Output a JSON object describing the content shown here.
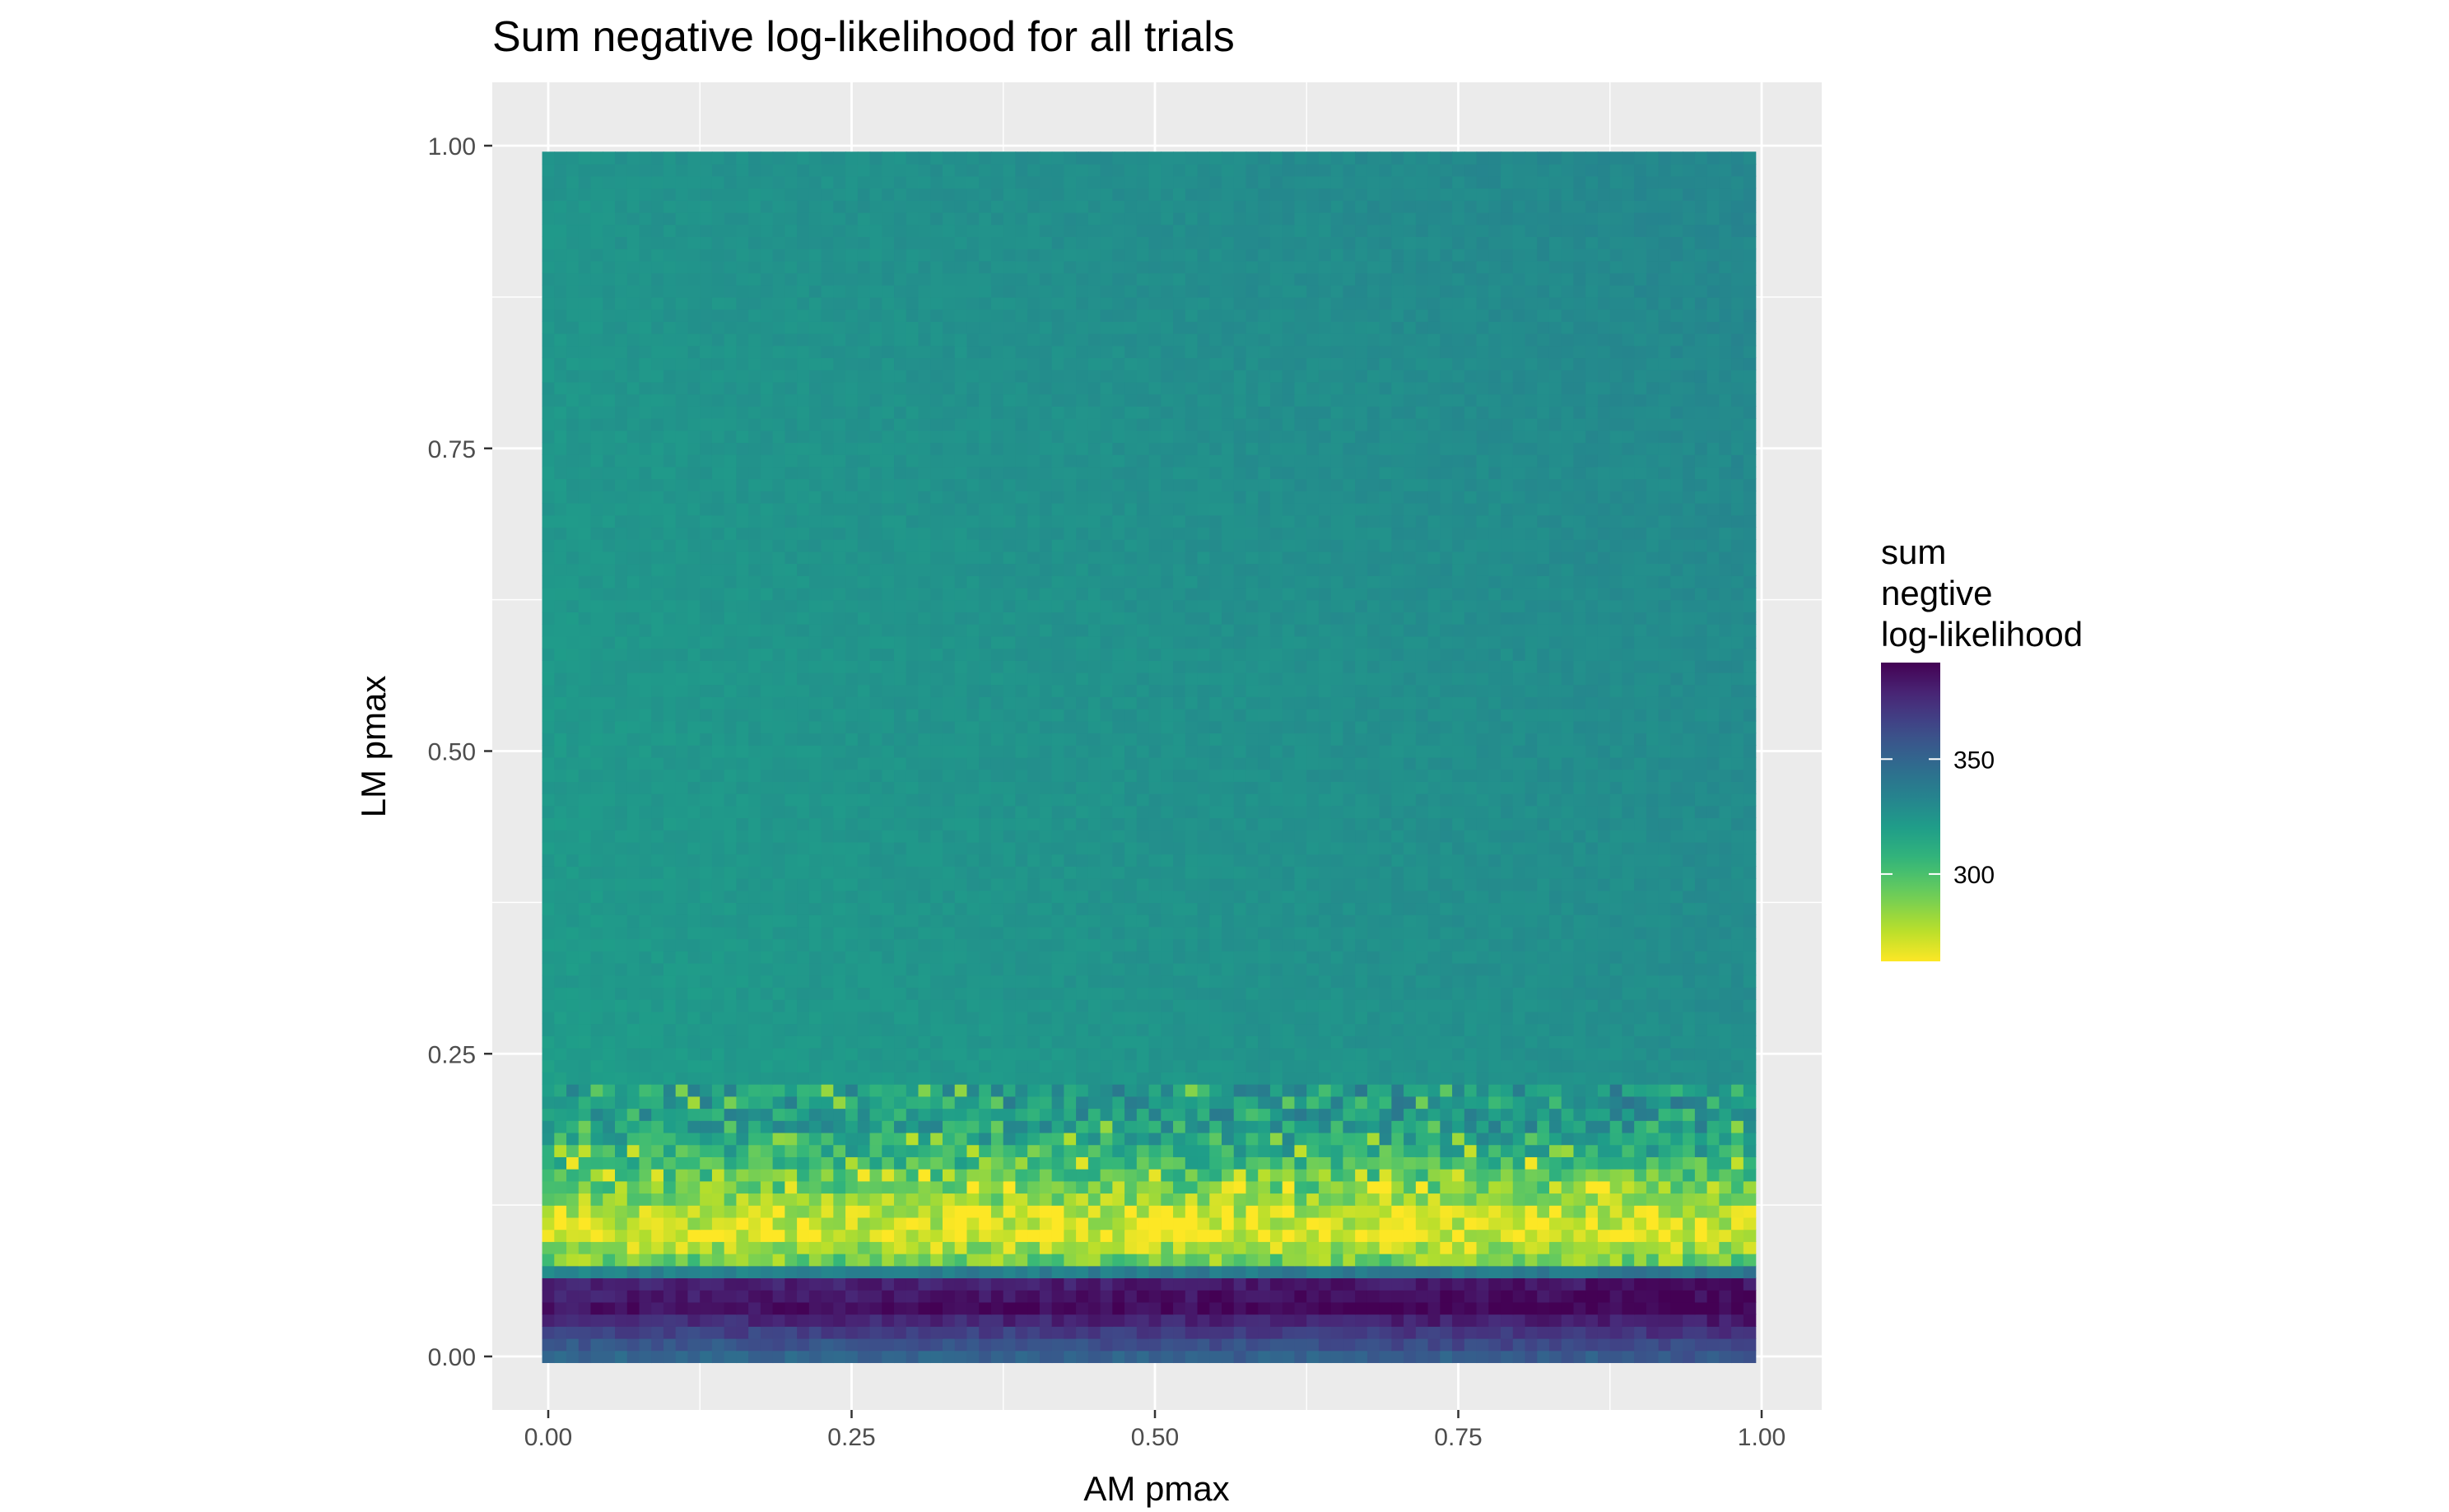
{
  "chart_data": {
    "type": "heatmap",
    "title": "Sum negative log-likelihood for all trials",
    "xlabel": "AM pmax",
    "ylabel": "LM pmax",
    "xlim": [
      0,
      1
    ],
    "ylim": [
      0,
      1
    ],
    "x_ticks": [
      "0.00",
      "0.25",
      "0.50",
      "0.75",
      "1.00"
    ],
    "y_ticks": [
      "0.00",
      "0.25",
      "0.50",
      "0.75",
      "1.00"
    ],
    "x_tick_values": [
      0,
      0.25,
      0.5,
      0.75,
      1.0
    ],
    "y_tick_values": [
      0,
      0.25,
      0.5,
      0.75,
      1.0
    ],
    "grid_step": 0.01,
    "grid_points_per_axis": 100,
    "colorbar": {
      "title_lines": [
        "sum",
        "negtive",
        "log-likelihood"
      ],
      "ticks": [
        "300",
        "350"
      ],
      "tick_values": [
        300,
        350
      ],
      "range": [
        262,
        392
      ],
      "palette": "viridis (reversed: low = yellow, high = purple)",
      "position": "right"
    },
    "value_profile_by_lm": [
      {
        "lm": 0.0,
        "value": 348
      },
      {
        "lm": 0.02,
        "value": 365
      },
      {
        "lm": 0.04,
        "value": 385
      },
      {
        "lm": 0.06,
        "value": 378
      },
      {
        "lm": 0.08,
        "value": 290
      },
      {
        "lm": 0.1,
        "value": 268
      },
      {
        "lm": 0.12,
        "value": 275
      },
      {
        "lm": 0.14,
        "value": 292
      },
      {
        "lm": 0.16,
        "value": 305
      },
      {
        "lm": 0.2,
        "value": 320
      },
      {
        "lm": 0.3,
        "value": 322
      },
      {
        "lm": 0.6,
        "value": 323
      },
      {
        "lm": 0.99,
        "value": 325
      }
    ],
    "am_trend": "values rise slightly (~7) from AM pmax 0 to 1 in the upper region; low-LM band deepest near AM pmax 1",
    "grid": true,
    "panel_background": "#ebebeb",
    "grid_color": "#ffffff"
  }
}
